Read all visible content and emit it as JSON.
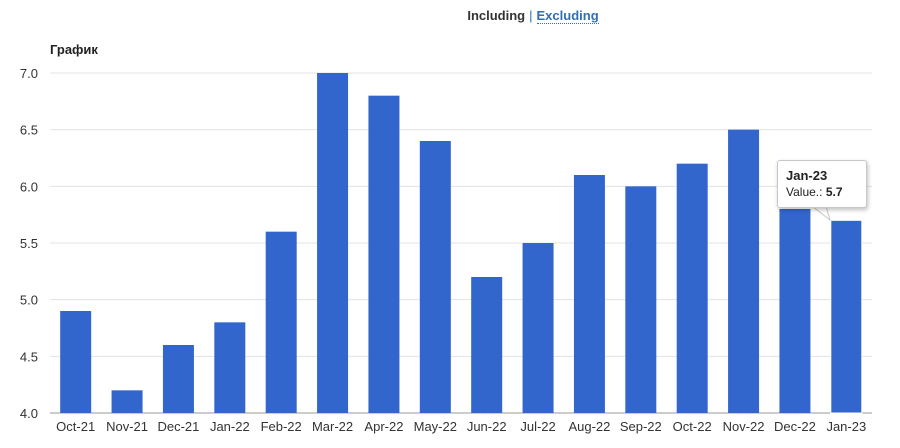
{
  "toggle": {
    "including": "Including",
    "separator": "|",
    "excluding": "Excluding"
  },
  "colors": {
    "bar": "#3366cc",
    "grid": "#e3e3e3",
    "link": "#2f6fb6"
  },
  "tooltip": {
    "title": "Jan-23",
    "label": "Value.:",
    "value": "5.7"
  },
  "chart_data": {
    "type": "bar",
    "title": "График",
    "categories": [
      "Oct-21",
      "Nov-21",
      "Dec-21",
      "Jan-22",
      "Feb-22",
      "Mar-22",
      "Apr-22",
      "May-22",
      "Jun-22",
      "Jul-22",
      "Aug-22",
      "Sep-22",
      "Oct-22",
      "Nov-22",
      "Dec-22",
      "Jan-23"
    ],
    "values": [
      4.9,
      4.2,
      4.6,
      4.8,
      5.6,
      7.0,
      6.8,
      6.4,
      5.2,
      5.5,
      6.1,
      6.0,
      6.2,
      6.5,
      5.8,
      5.7
    ],
    "ylim": [
      4.0,
      7.0
    ],
    "yticks": [
      "4.0",
      "4.5",
      "5.0",
      "5.5",
      "6.0",
      "6.5",
      "7.0"
    ],
    "grid": true,
    "xlabel": "",
    "ylabel": ""
  }
}
